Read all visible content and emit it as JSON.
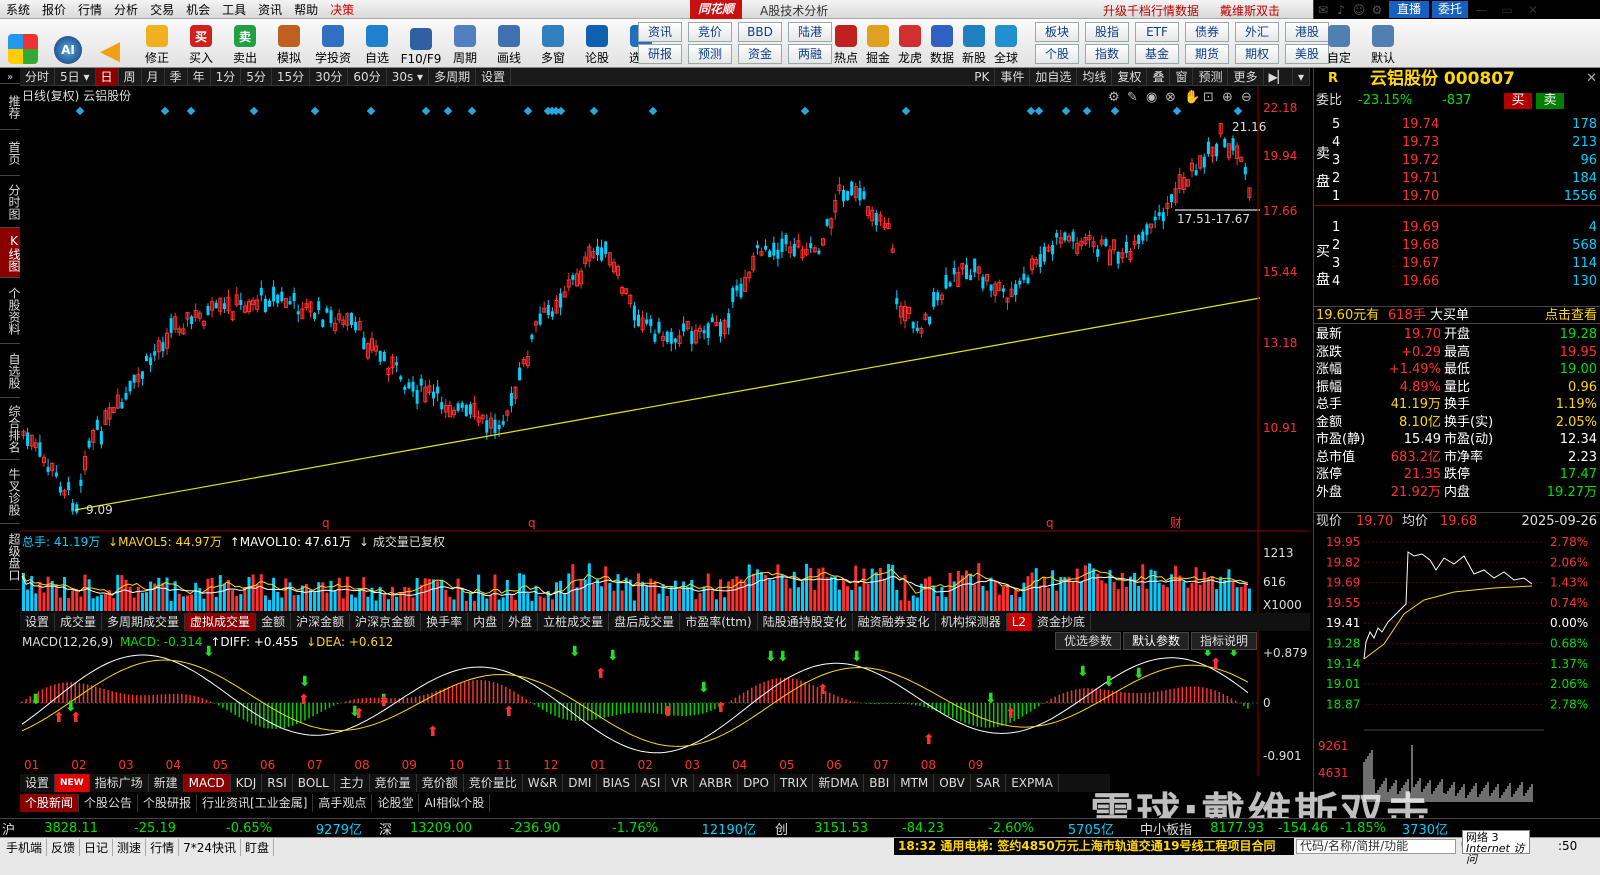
{
  "menu": {
    "items": [
      "系统",
      "报价",
      "行情",
      "分析",
      "交易",
      "机会",
      "工具",
      "资讯",
      "帮助",
      "决策"
    ],
    "brand": "同花顺",
    "subtitle": "A股技术分析",
    "promo1": "升级千档行情数据",
    "promo2": "戴维斯双击",
    "live": "直播",
    "entrust": "委托"
  },
  "toolbar": {
    "big": [
      {
        "label": "修正",
        "icon": "up-down-arrows-icon"
      },
      {
        "label": "买入",
        "icon": "buy-icon",
        "glyph": "买"
      },
      {
        "label": "卖出",
        "icon": "sell-icon",
        "glyph": "卖"
      },
      {
        "label": "模拟",
        "icon": "gavel-icon"
      },
      {
        "label": "学投资",
        "icon": "graduation-cap-icon"
      },
      {
        "label": "自选",
        "icon": "star-icon"
      },
      {
        "label": "F10/F9",
        "icon": "f10-icon"
      },
      {
        "label": "周期",
        "icon": "clock-icon"
      },
      {
        "label": "画线",
        "icon": "pen-icon"
      },
      {
        "label": "多窗",
        "icon": "window-icon"
      },
      {
        "label": "论股",
        "icon": "discuss-icon"
      },
      {
        "label": "选股",
        "icon": "magnifier-icon"
      }
    ],
    "grid1": [
      "资讯",
      "竞价",
      "BBD",
      "陆港"
    ],
    "grid2": [
      "研报",
      "预测",
      "资金",
      "两融"
    ],
    "big2": [
      {
        "label": "热点",
        "icon": "fire-icon"
      },
      {
        "label": "掘金",
        "icon": "gold-icon"
      },
      {
        "label": "龙虎",
        "icon": "dragon-icon"
      },
      {
        "label": "数据",
        "icon": "pe-icon"
      },
      {
        "label": "新股",
        "icon": "ipo-icon"
      },
      {
        "label": "全球",
        "icon": "globe-icon"
      }
    ],
    "grid3": [
      "板块",
      "股指",
      "ETF",
      "债券",
      "外汇",
      "港股"
    ],
    "grid4": [
      "个股",
      "指数",
      "基金",
      "期货",
      "期权",
      "美股"
    ],
    "big3": [
      {
        "label": "自定",
        "icon": "custom-icon"
      },
      {
        "label": "默认",
        "icon": "home-icon"
      }
    ]
  },
  "leftnav": [
    "推荐",
    "首页",
    "分时图",
    "K线图",
    "个股资料",
    "自选股",
    "综合排名",
    "牛叉诊股",
    "超级盘口"
  ],
  "periods": [
    "分时",
    "5日",
    "日",
    "周",
    "月",
    "季",
    "年",
    "1分",
    "5分",
    "15分",
    "30分",
    "60分",
    "30s",
    "多周期",
    "设置"
  ],
  "periods_right": [
    "PK",
    "事件",
    "加自选",
    "均线",
    "复权",
    "叠",
    "窗",
    "预测",
    "更多"
  ],
  "chart": {
    "title": "日线(复权)  云铝股份",
    "yticks": [
      "22.18",
      "19.94",
      "17.66",
      "15.44",
      "13.18",
      "10.91"
    ],
    "high_label": "21.16",
    "low_label": "9.09",
    "range_label": "17.51-17.67",
    "event_marks": [
      "q",
      "q",
      "q",
      "财"
    ],
    "vol_legend": {
      "total": "总手: 41.19万",
      "ma5": "↓MAVOL5: 44.97万",
      "ma10": "↑MAVOL10: 47.61万",
      "note": "↓ 成交量已复权"
    },
    "vol_yticks": [
      "1213",
      "616"
    ],
    "vol_unit": "X1000",
    "vol_tabs": [
      "设置",
      "成交量",
      "多周期成交量",
      "虚拟成交量",
      "金额",
      "沪深金额",
      "沪深京金额",
      "换手率",
      "内盘",
      "外盘",
      "立桩成交量",
      "盘后成交量",
      "市盈率(ttm)",
      "陆股通持股变化",
      "融资融券变化",
      "机构探测器",
      "L2",
      "资金抄底"
    ],
    "macd_legend": {
      "name": "MACD(12,26,9)",
      "macd": "MACD: -0.314",
      "diff": "↑DIFF: +0.455",
      "dea": "↓DEA: +0.612"
    },
    "macd_buttons": [
      "优选参数",
      "默认参数",
      "指标说明"
    ],
    "macd_yticks": [
      "+0.879",
      "0",
      "-0.901"
    ],
    "months": [
      "01",
      "02",
      "03",
      "04",
      "05",
      "06",
      "07",
      "08",
      "09",
      "10",
      "11",
      "12",
      "01",
      "02",
      "03",
      "04",
      "05",
      "06",
      "07",
      "08",
      "09"
    ],
    "ind_tabs": [
      "设置",
      "NEW",
      "指标广场",
      "新建",
      "MACD",
      "KDJ",
      "RSI",
      "BOLL",
      "主力",
      "竞价量",
      "竞价额",
      "竞价量比",
      "W&R",
      "DMI",
      "BIAS",
      "ASI",
      "VR",
      "ARBR",
      "DPO",
      "TRIX",
      "新DMA",
      "BBI",
      "MTM",
      "OBV",
      "SAR",
      "EXPMA"
    ],
    "news_tabs": [
      "个股新闻",
      "个股公告",
      "个股研报",
      "行业资讯[工业金属]",
      "高手观点",
      "论股堂",
      "AI相似个股"
    ]
  },
  "quote": {
    "header": "云铝股份 000807",
    "r": "R",
    "weibi": {
      "label": "委比",
      "ratio": "-23.15%",
      "diff": "-837",
      "buy": "买",
      "sell": "卖"
    },
    "asks": [
      {
        "n": "5",
        "p": "19.74",
        "v": "178"
      },
      {
        "n": "4",
        "p": "19.73",
        "v": "213"
      },
      {
        "n": "3",
        "p": "19.72",
        "v": "96"
      },
      {
        "n": "2",
        "p": "19.71",
        "v": "184"
      },
      {
        "n": "1",
        "p": "19.70",
        "v": "1556"
      }
    ],
    "bids": [
      {
        "n": "1",
        "p": "19.69",
        "v": "4"
      },
      {
        "n": "2",
        "p": "19.68",
        "v": "568"
      },
      {
        "n": "3",
        "p": "19.67",
        "v": "114"
      },
      {
        "n": "4",
        "p": "19.66",
        "v": "130"
      }
    ],
    "sell_label": "卖盘",
    "buy_label": "买盘",
    "bigorder": {
      "price": "19.60元有",
      "qty": "618手",
      "label": "大买单",
      "link": "点击查看"
    },
    "stats": [
      [
        "最新",
        "19.70",
        "开盘",
        "19.28"
      ],
      [
        "涨跌",
        "+0.29",
        "最高",
        "19.95"
      ],
      [
        "涨幅",
        "+1.49%",
        "最低",
        "19.00"
      ],
      [
        "振幅",
        "4.89%",
        "量比",
        "0.96"
      ],
      [
        "总手",
        "41.19万",
        "换手",
        "1.19%"
      ],
      [
        "金额",
        "8.10亿",
        "换手(实)",
        "2.05%"
      ],
      [
        "市盈(静)",
        "15.49",
        "市盈(动)",
        "12.34"
      ],
      [
        "总市值",
        "683.2亿",
        "市净率",
        "2.23"
      ],
      [
        "涨停",
        "21.35",
        "跌停",
        "17.47"
      ],
      [
        "外盘",
        "21.92万",
        "内盘",
        "19.27万"
      ]
    ],
    "intraday": {
      "now_label": "现价",
      "now": "19.70",
      "avg_label": "均价",
      "avg": "19.68",
      "date": "2025-09-26",
      "ylabels": [
        "19.95",
        "19.82",
        "19.69",
        "19.55",
        "19.41",
        "19.28",
        "19.14",
        "19.01",
        "18.87"
      ],
      "pct": [
        "2.78%",
        "2.06%",
        "1.43%",
        "0.74%",
        "0.00%",
        "0.68%",
        "1.37%",
        "2.06%",
        "2.78%"
      ],
      "vol": [
        "9261",
        "4631"
      ]
    }
  },
  "status": {
    "sh": {
      "name": "沪",
      "v": "3828.11",
      "chg": "-25.19",
      "pct": "-0.65%",
      "amt": "9279亿"
    },
    "sz": {
      "name": "深",
      "v": "13209.00",
      "chg": "-236.90",
      "pct": "-1.76%",
      "amt": "12190亿"
    },
    "cy": {
      "name": "创",
      "v": "3151.53",
      "chg": "-84.23",
      "pct": "-2.60%",
      "amt": "5705亿"
    },
    "zx": {
      "name": "中小板指",
      "v": "8177.93",
      "chg": "-154.46",
      "pct": "-1.85%",
      "amt": "3730亿"
    }
  },
  "bottom": {
    "items": [
      "手机端",
      "反馈",
      "日记",
      "测速",
      "行情",
      "7*24快讯",
      "盯盘"
    ],
    "news": "18:32 通用电梯: 签约4850万元上海市轨道交通19号线工程项目合同",
    "search": "代码/名称/简拼/功能",
    "net": "网络",
    "net_n": "3",
    "ie": "Internet 访问",
    "time": ":50"
  },
  "watermark": "雪球:戴维斯双击"
}
